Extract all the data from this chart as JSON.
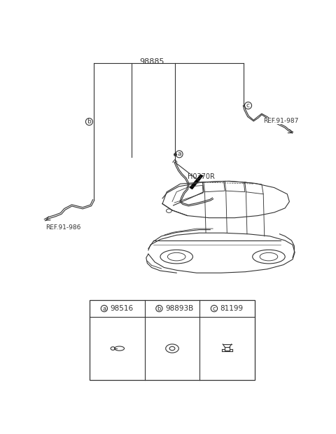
{
  "bg_color": "#ffffff",
  "line_color": "#333333",
  "lw": 0.8,
  "label_98885": "98885",
  "label_H0370R": "H0370R",
  "label_REF91_987": "REF.91-987",
  "label_REF91_986": "REF.91-986",
  "parts": [
    {
      "circle_label": "a",
      "part_num": "98516"
    },
    {
      "circle_label": "b",
      "part_num": "98893B"
    },
    {
      "circle_label": "c",
      "part_num": "81199"
    }
  ]
}
